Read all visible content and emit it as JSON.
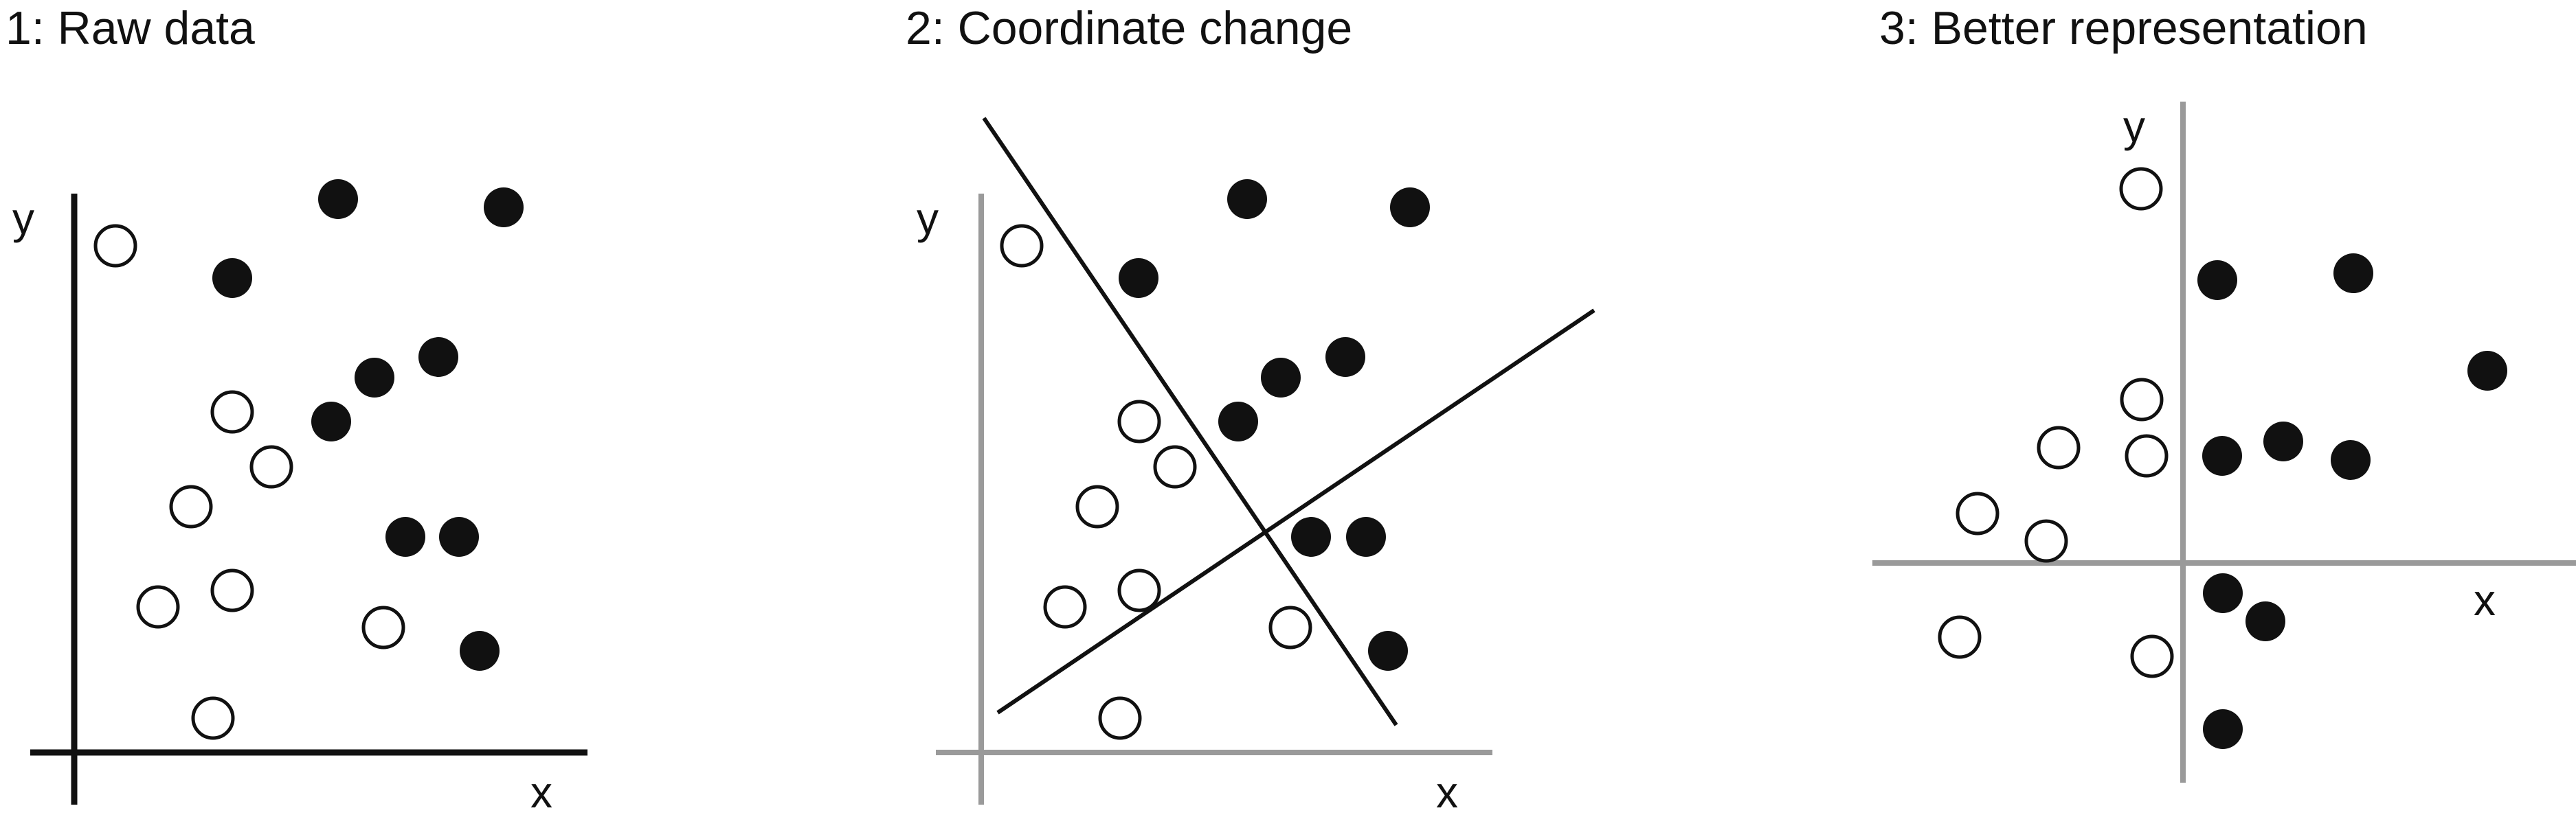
{
  "panels": [
    {
      "title": "1: Raw data",
      "axis_color": "#111111",
      "x_label": "x",
      "y_label": "y"
    },
    {
      "title": "2: Coordinate change",
      "axis_color": "#9a9a9a",
      "x_label": "x",
      "y_label": "y"
    },
    {
      "title": "3: Better representation",
      "axis_color": "#9a9a9a",
      "x_label": "x",
      "y_label": "y"
    }
  ],
  "colors": {
    "filled_point": "#111111",
    "open_point_stroke": "#111111",
    "new_axis_line": "#111111"
  }
}
